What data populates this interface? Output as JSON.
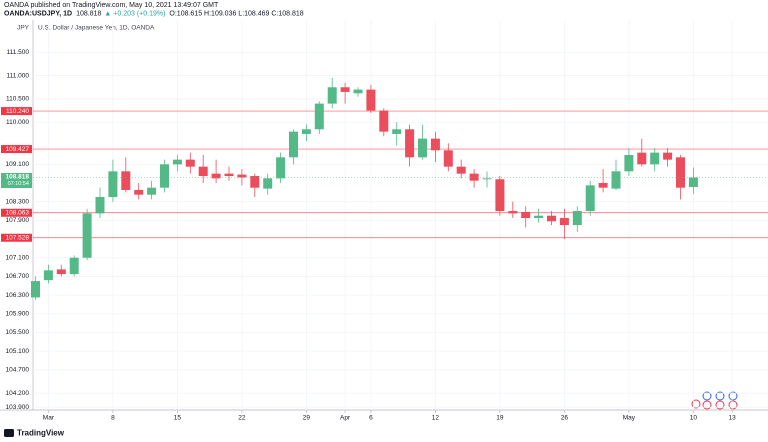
{
  "header": {
    "publisher": "OANDA published on TradingView.com, May 10, 2021 13:49:07 GMT",
    "symbol": "OANDA:USDJPY, 1D",
    "last": "108.818",
    "change": "▲ +0.203 (+0.19%)",
    "ohlc": "O:108.615 H:109.036 L:108.469 C:108.818"
  },
  "footer": {
    "brand": "TradingView"
  },
  "chart_data": {
    "type": "candlestick",
    "title": "U.S. Dollar / Japanese Yen, 1D, OANDA",
    "axis_unit": "JPY",
    "up_color": "#53b987",
    "down_color": "#eb4d5c",
    "grid": true,
    "categories": [
      null,
      "Mar",
      null,
      null,
      null,
      null,
      "8",
      null,
      null,
      null,
      null,
      "15",
      null,
      null,
      null,
      null,
      "22",
      null,
      null,
      null,
      null,
      "29",
      null,
      null,
      "Apr",
      null,
      "6",
      null,
      null,
      null,
      null,
      "12",
      null,
      null,
      null,
      null,
      "19",
      null,
      null,
      null,
      null,
      "26",
      null,
      null,
      null,
      null,
      "May",
      null,
      null,
      null,
      null,
      "10",
      null,
      null,
      "13"
    ],
    "open": [
      106.25,
      106.62,
      106.85,
      106.75,
      107.1,
      108.05,
      108.4,
      108.95,
      108.55,
      108.45,
      108.6,
      109.1,
      109.2,
      109.05,
      108.9,
      108.9,
      108.88,
      108.85,
      108.58,
      108.8,
      109.25,
      109.75,
      109.85,
      110.4,
      110.75,
      110.62,
      110.7,
      110.25,
      109.75,
      109.85,
      109.25,
      109.65,
      109.4,
      109.05,
      108.9,
      108.78,
      108.78,
      108.1,
      108.08,
      107.95,
      108.0,
      107.95,
      107.8,
      108.1,
      108.7,
      108.58,
      108.95,
      109.35,
      109.1,
      109.35,
      109.25,
      108.615,
      null,
      null,
      null
    ],
    "high": [
      106.7,
      106.95,
      106.95,
      107.15,
      108.15,
      108.6,
      109.2,
      109.25,
      108.7,
      108.75,
      109.2,
      109.3,
      109.35,
      109.3,
      109.2,
      109.05,
      109.0,
      108.9,
      108.9,
      109.35,
      109.85,
      109.95,
      110.45,
      110.95,
      110.85,
      110.75,
      110.8,
      110.3,
      110.0,
      109.95,
      109.95,
      109.8,
      109.55,
      109.2,
      109.0,
      108.95,
      108.85,
      108.3,
      108.2,
      108.15,
      108.1,
      108.15,
      108.2,
      108.75,
      109.0,
      109.2,
      109.45,
      109.65,
      109.45,
      109.45,
      109.3,
      109.036,
      null,
      null,
      null
    ],
    "low": [
      106.2,
      106.55,
      106.7,
      106.7,
      107.05,
      107.95,
      108.3,
      108.5,
      108.35,
      108.35,
      108.5,
      108.95,
      108.9,
      108.7,
      108.7,
      108.75,
      108.65,
      108.4,
      108.45,
      108.7,
      109.1,
      109.6,
      109.75,
      110.3,
      110.4,
      110.55,
      110.2,
      109.7,
      109.5,
      109.05,
      109.2,
      109.15,
      108.95,
      108.8,
      108.6,
      108.6,
      108.0,
      107.95,
      107.75,
      107.85,
      107.8,
      107.5,
      107.65,
      108.0,
      108.5,
      108.55,
      108.85,
      109.05,
      108.95,
      109.05,
      108.35,
      108.469,
      null,
      null,
      null
    ],
    "close": [
      106.6,
      106.83,
      106.75,
      107.1,
      108.05,
      108.4,
      108.95,
      108.55,
      108.45,
      108.6,
      109.1,
      109.2,
      109.05,
      108.85,
      108.8,
      108.85,
      108.82,
      108.6,
      108.8,
      109.25,
      109.8,
      109.85,
      110.4,
      110.75,
      110.65,
      110.7,
      110.25,
      109.8,
      109.85,
      109.25,
      109.65,
      109.4,
      109.05,
      108.9,
      108.75,
      108.8,
      108.1,
      108.05,
      107.95,
      108.0,
      107.88,
      107.8,
      108.1,
      108.65,
      108.6,
      108.95,
      109.3,
      109.1,
      109.35,
      109.2,
      108.6,
      108.818,
      null,
      null,
      null
    ],
    "ylim": [
      103.84,
      112.19
    ],
    "yticks": [
      {
        "value": 111.5,
        "label": "111.500"
      },
      {
        "value": 111.0,
        "label": "111.000"
      },
      {
        "value": 110.5,
        "label": "110.500"
      },
      {
        "value": 110.0,
        "label": "110.000"
      },
      {
        "value": 109.1,
        "label": "109.100"
      },
      {
        "value": 108.3,
        "label": "108.300"
      },
      {
        "value": 107.9,
        "label": "107.900"
      },
      {
        "value": 107.1,
        "label": "107.100"
      },
      {
        "value": 106.7,
        "label": "106.700"
      },
      {
        "value": 106.3,
        "label": "106.300"
      },
      {
        "value": 105.9,
        "label": "105.900"
      },
      {
        "value": 105.5,
        "label": "105.500"
      },
      {
        "value": 105.1,
        "label": "105.100"
      },
      {
        "value": 104.7,
        "label": "104.700"
      },
      {
        "value": 104.2,
        "label": "104.200"
      },
      {
        "value": 103.9,
        "label": "103.900"
      }
    ],
    "price_lines": [
      {
        "value": 110.24,
        "label": "110.240"
      },
      {
        "value": 109.427,
        "label": "109.427"
      },
      {
        "value": 108.063,
        "label": "108.063"
      },
      {
        "value": 107.528,
        "label": "107.528"
      }
    ],
    "price_line_color": "#f23645",
    "last_price": {
      "value": 108.818,
      "label": "108.818",
      "countdown": "07:10:54"
    }
  }
}
